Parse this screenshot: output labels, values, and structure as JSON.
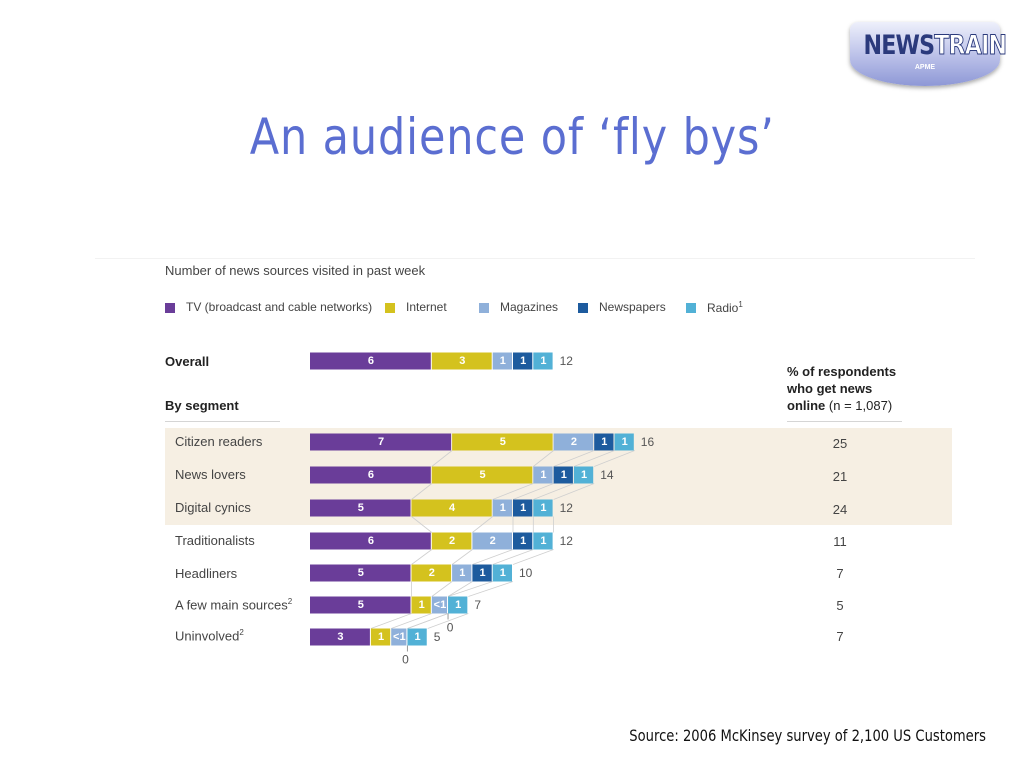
{
  "logo": {
    "word_a": "NEWS",
    "word_b": "TRAIN",
    "sub": "APME"
  },
  "slide_title": "An audience of ‘fly bys’",
  "source": "Source: 2006 McKinsey survey of 2,100 US Customers",
  "chart_data": {
    "type": "bar",
    "orientation": "horizontal-stacked",
    "title": "Number of news sources visited in past week",
    "legend": [
      {
        "name": "TV (broadcast and cable networks)",
        "color": "#6a3d99"
      },
      {
        "name": "Internet",
        "color": "#d4c21e"
      },
      {
        "name": "Magazines",
        "color": "#8fb0da"
      },
      {
        "name": "Newspapers",
        "color": "#1d5b9e"
      },
      {
        "name": "Radio",
        "sup": "1",
        "color": "#52b1d6"
      }
    ],
    "overall": {
      "label": "Overall",
      "values": [
        6,
        3,
        1,
        1,
        1
      ],
      "labels": [
        "6",
        "3",
        "1",
        "1",
        "1"
      ],
      "total": "12"
    },
    "segment_header": "By segment",
    "segments": [
      {
        "label": "Citizen readers",
        "values": [
          7,
          5,
          2,
          1,
          1
        ],
        "labels": [
          "7",
          "5",
          "2",
          "1",
          "1"
        ],
        "total": "16",
        "pct": "25"
      },
      {
        "label": "News lovers",
        "values": [
          6,
          5,
          1,
          1,
          1
        ],
        "labels": [
          "6",
          "5",
          "1",
          "1",
          "1"
        ],
        "total": "14",
        "pct": "21"
      },
      {
        "label": "Digital cynics",
        "values": [
          5,
          4,
          1,
          1,
          1
        ],
        "labels": [
          "5",
          "4",
          "1",
          "1",
          "1"
        ],
        "total": "12",
        "pct": "24"
      },
      {
        "label": "Traditionalists",
        "values": [
          6,
          2,
          2,
          1,
          1
        ],
        "labels": [
          "6",
          "2",
          "2",
          "1",
          "1"
        ],
        "total": "12",
        "pct": "11"
      },
      {
        "label": "Headliners",
        "values": [
          5,
          2,
          1,
          1,
          1
        ],
        "labels": [
          "5",
          "2",
          "1",
          "1",
          "1"
        ],
        "total": "10",
        "pct": "7"
      },
      {
        "label": "A few main sources",
        "sup": "2",
        "values": [
          5,
          1,
          0.8,
          0,
          1
        ],
        "labels": [
          "5",
          "1",
          "<1",
          "",
          "1"
        ],
        "total": "7",
        "zero_note": "0",
        "pct": "5"
      },
      {
        "label": "Uninvolved",
        "sup": "2",
        "values": [
          3,
          1,
          0.8,
          0,
          1
        ],
        "labels": [
          "3",
          "1",
          "<1",
          "",
          "1"
        ],
        "total": "5",
        "zero_note": "0",
        "pct": "7"
      }
    ],
    "pct_header": {
      "line1": "% of respondents",
      "line2": "who get news",
      "line3_bold": "online",
      "line3_rest": "(n = 1,087)"
    }
  }
}
